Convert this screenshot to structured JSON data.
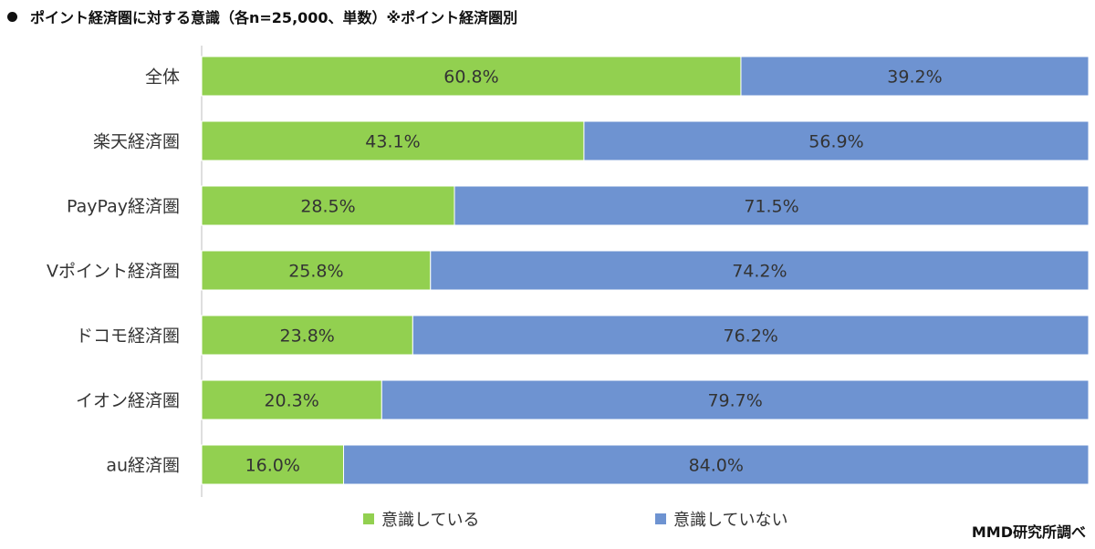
{
  "title": "ポイント経済圏に対する意識（各n=25,000、単数）※ポイント経済圏別",
  "credit": "MMD研究所調べ",
  "colors": {
    "conscious": "#92D050",
    "not_conscious": "#6E93D1",
    "axis": "#BFBFBF"
  },
  "legend": [
    {
      "label": "意識している",
      "color": "#92D050"
    },
    {
      "label": "意識していない",
      "color": "#6E93D1"
    }
  ],
  "chart_data": {
    "type": "bar",
    "orientation": "horizontal",
    "stacked": true,
    "title": "ポイント経済圏に対する意識（各n=25,000、単数）※ポイント経済圏別",
    "categories": [
      "全体",
      "楽天経済圏",
      "PayPay経済圏",
      "Vポイント経済圏",
      "ドコモ経済圏",
      "イオン経済圏",
      "au経済圏"
    ],
    "series": [
      {
        "name": "意識している",
        "values": [
          60.8,
          43.1,
          28.5,
          25.8,
          23.8,
          20.3,
          16.0
        ],
        "labels": [
          "60.8%",
          "43.1%",
          "28.5%",
          "25.8%",
          "23.8%",
          "20.3%",
          "16.0%"
        ]
      },
      {
        "name": "意識していない",
        "values": [
          39.2,
          56.9,
          71.5,
          74.2,
          76.2,
          79.7,
          84.0
        ],
        "labels": [
          "39.2%",
          "56.9%",
          "71.5%",
          "74.2%",
          "76.2%",
          "79.7%",
          "84.0%"
        ]
      }
    ],
    "xlim": [
      0,
      100
    ],
    "grid": false,
    "legend_position": "bottom"
  }
}
